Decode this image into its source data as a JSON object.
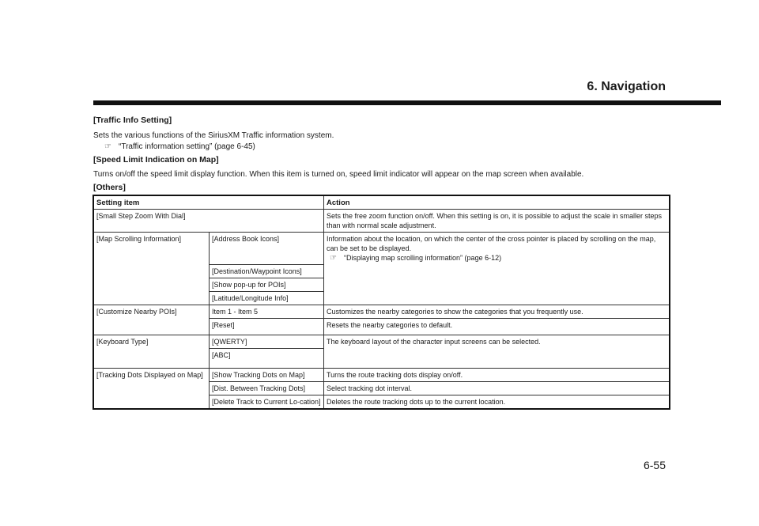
{
  "header": {
    "chapter": "6. Navigation"
  },
  "sections": [
    {
      "heading": "[Traffic Info Setting]",
      "body": "Sets the various functions of the SiriusXM Traffic information system.",
      "reference": "“Traffic information setting” (page 6-45)"
    },
    {
      "heading": "[Speed Limit Indication on Map]",
      "body": "Turns on/off the speed limit display function. When this item is turned on, speed limit indicator will appear on the map screen when available."
    },
    {
      "heading": "[Others]"
    }
  ],
  "table": {
    "headers": [
      "Setting item",
      "Action"
    ],
    "rows": {
      "small_step": {
        "item": "[Small Step Zoom With Dial]",
        "action": "Sets the free zoom function on/off. When this setting is on, it is possible to adjust the scale in smaller steps than with normal scale adjustment."
      },
      "map_scrolling": {
        "item": "[Map Scrolling Information]",
        "subitems": [
          "[Address Book Icons]",
          "[Destination/Waypoint Icons]",
          "[Show pop-up for POIs]",
          "[Latitude/Longitude Info]"
        ],
        "action": "Information about the location, on which the center of the cross pointer is placed by scrolling on the map, can be set to be displayed.",
        "reference": "“Displaying map scrolling information” (page 6-12)"
      },
      "nearby": {
        "item": "[Customize Nearby POIs]",
        "subitems": [
          "Item 1 - Item 5",
          "[Reset]"
        ],
        "actions": [
          "Customizes the nearby categories to show the categories that you frequently use.",
          "Resets the nearby categories to default."
        ]
      },
      "keyboard": {
        "item": "[Keyboard Type]",
        "subitems": [
          "[QWERTY]",
          "[ABC]"
        ],
        "action": "The keyboard layout of the character input screens can be selected."
      },
      "tracking": {
        "item": "[Tracking Dots Displayed on Map]",
        "subitems": [
          "[Show Tracking Dots on Map]",
          "[Dist. Between Tracking Dots]",
          "[Delete Track to Current Lo-cation]"
        ],
        "actions": [
          "Turns the route tracking dots display on/off.",
          "Select tracking dot interval.",
          "Deletes the route tracking dots up to the current location."
        ]
      }
    }
  },
  "footer": {
    "page_number": "6-55"
  },
  "icons": {
    "reference": "pointing-hand-reference-icon"
  }
}
